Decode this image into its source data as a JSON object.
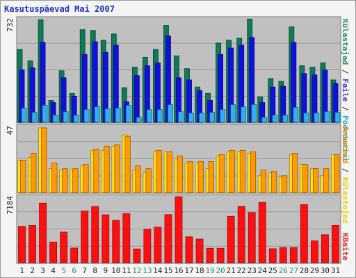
{
  "title": "Kasutuspäevad Mai 2007",
  "side_labels": {
    "top": [
      {
        "text": "Külastajad",
        "color": "#2e8b6a"
      },
      {
        "text": " / ",
        "color": "#333333"
      },
      {
        "text": "Faile",
        "color": "#3a3ad0"
      },
      {
        "text": " / ",
        "color": "#333333"
      },
      {
        "text": "Pöördumisi",
        "color": "#2aa8d0"
      }
    ],
    "middle": [
      {
        "text": "Arvuteid",
        "color": "#ee8a00"
      },
      {
        "text": " / ",
        "color": "#333333"
      },
      {
        "text": "Külastajad",
        "color": "#e8d000"
      }
    ],
    "bottom": [
      {
        "text": "KBaite",
        "color": "#e82020"
      }
    ]
  },
  "chart_data": [
    {
      "type": "bar",
      "panel": "top",
      "ymax_label": "732",
      "ylim": [
        0,
        732
      ],
      "categories": [
        "1",
        "2",
        "3",
        "4",
        "5",
        "6",
        "7",
        "8",
        "9",
        "10",
        "11",
        "12",
        "13",
        "14",
        "15",
        "16",
        "17",
        "18",
        "19",
        "20",
        "21",
        "22",
        "23",
        "24",
        "25",
        "26",
        "27",
        "28",
        "29",
        "30",
        "31"
      ],
      "weekend_days": [
        "5",
        "6",
        "12",
        "13",
        "19",
        "20",
        "26",
        "27"
      ],
      "series": [
        {
          "name": "Pöördumisi",
          "color": "#0f7a58",
          "values": [
            515,
            435,
            725,
            155,
            365,
            205,
            655,
            650,
            580,
            625,
            245,
            390,
            460,
            515,
            685,
            470,
            380,
            250,
            205,
            560,
            580,
            595,
            730,
            180,
            310,
            290,
            675,
            400,
            390,
            420,
            300
          ]
        },
        {
          "name": "Faile",
          "color": "#1010e0",
          "values": [
            370,
            385,
            565,
            140,
            315,
            185,
            480,
            570,
            495,
            545,
            145,
            330,
            400,
            420,
            610,
            315,
            300,
            225,
            155,
            480,
            525,
            545,
            600,
            140,
            250,
            255,
            565,
            345,
            335,
            370,
            275
          ]
        },
        {
          "name": "Külastajad",
          "color": "#30b0f0",
          "values": [
            100,
            70,
            120,
            50,
            75,
            50,
            90,
            110,
            95,
            100,
            120,
            35,
            90,
            90,
            125,
            75,
            65,
            65,
            70,
            90,
            125,
            110,
            125,
            35,
            50,
            50,
            105,
            65,
            65,
            75,
            70
          ]
        }
      ]
    },
    {
      "type": "bar",
      "panel": "middle",
      "ymax_label": "47",
      "ylim": [
        0,
        47
      ],
      "categories": [
        "1",
        "2",
        "3",
        "4",
        "5",
        "6",
        "7",
        "8",
        "9",
        "10",
        "11",
        "12",
        "13",
        "14",
        "15",
        "16",
        "17",
        "18",
        "19",
        "20",
        "21",
        "22",
        "23",
        "24",
        "25",
        "26",
        "27",
        "28",
        "29",
        "30",
        "31"
      ],
      "series": [
        {
          "name": "Külastajad",
          "color": "#ffe020",
          "values": [
            23,
            25,
            46,
            17,
            16,
            16,
            19,
            30,
            30,
            33,
            41,
            16,
            14,
            29,
            29,
            24,
            21,
            21,
            17,
            26,
            29,
            29,
            28,
            12,
            14,
            11,
            27,
            20,
            17,
            12,
            27
          ]
        },
        {
          "name": "Arvuteid",
          "color": "#ff9a00",
          "values": [
            23,
            28,
            46,
            21,
            17,
            17,
            20,
            31,
            33,
            34,
            40,
            19,
            17,
            30,
            29,
            26,
            22,
            22,
            22,
            27,
            30,
            30,
            29,
            16,
            15,
            12,
            28,
            20,
            17,
            17,
            27
          ]
        }
      ]
    },
    {
      "type": "bar",
      "panel": "bottom",
      "ymax_label": "7184",
      "ylim": [
        0,
        7184
      ],
      "categories": [
        "1",
        "2",
        "3",
        "4",
        "5",
        "6",
        "7",
        "8",
        "9",
        "10",
        "11",
        "12",
        "13",
        "14",
        "15",
        "16",
        "17",
        "18",
        "19",
        "20",
        "21",
        "22",
        "23",
        "24",
        "25",
        "26",
        "27",
        "28",
        "29",
        "30",
        "31"
      ],
      "series": [
        {
          "name": "KBaite",
          "color": "#ff1010",
          "values": [
            3950,
            4050,
            6480,
            2250,
            3330,
            1600,
            5630,
            6120,
            5210,
            4620,
            5340,
            1500,
            3650,
            3870,
            5230,
            7184,
            2820,
            2570,
            1570,
            1570,
            5050,
            6140,
            5460,
            6560,
            1520,
            1650,
            1650,
            6320,
            2380,
            3040,
            4060
          ]
        }
      ]
    }
  ]
}
